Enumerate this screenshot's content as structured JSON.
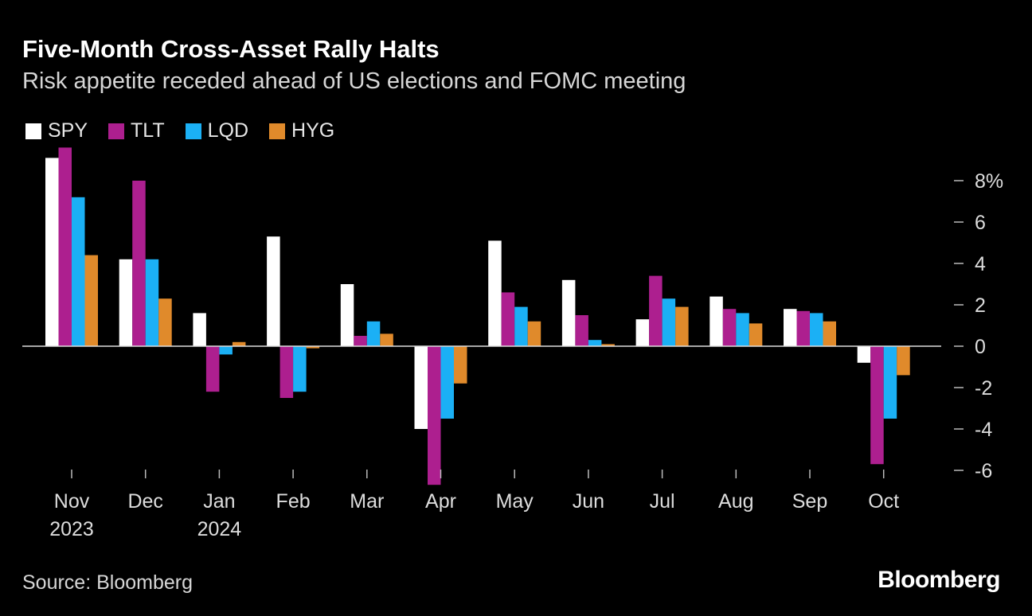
{
  "title": "Five-Month Cross-Asset Rally Halts",
  "subtitle": "Risk appetite receded ahead of US elections and FOMC meeting",
  "source": "Source: Bloomberg",
  "logo": "Bloomberg",
  "chart_data": {
    "type": "bar",
    "title": "Five-Month Cross-Asset Rally Halts",
    "subtitle": "Risk appetite receded ahead of US elections and FOMC meeting",
    "categories": [
      "Nov",
      "Dec",
      "Jan",
      "Feb",
      "Mar",
      "Apr",
      "May",
      "Jun",
      "Jul",
      "Aug",
      "Sep",
      "Oct"
    ],
    "category_sublabels": [
      "2023",
      "",
      "2024",
      "",
      "",
      "",
      "",
      "",
      "",
      "",
      "",
      ""
    ],
    "series": [
      {
        "name": "SPY",
        "color": "#ffffff",
        "values": [
          9.1,
          4.2,
          1.6,
          5.3,
          3.0,
          -4.0,
          5.1,
          3.2,
          1.3,
          2.4,
          1.8,
          -0.8
        ]
      },
      {
        "name": "TLT",
        "color": "#ad1f8f",
        "values": [
          9.6,
          8.0,
          -2.2,
          -2.5,
          0.5,
          -6.7,
          2.6,
          1.5,
          3.4,
          1.8,
          1.7,
          -5.7
        ]
      },
      {
        "name": "LQD",
        "color": "#1bb0f5",
        "values": [
          7.2,
          4.2,
          -0.4,
          -2.2,
          1.2,
          -3.5,
          1.9,
          0.3,
          2.3,
          1.6,
          1.6,
          -3.5
        ]
      },
      {
        "name": "HYG",
        "color": "#e08a2b",
        "values": [
          4.4,
          2.3,
          0.2,
          -0.1,
          0.6,
          -1.8,
          1.2,
          0.1,
          1.9,
          1.1,
          1.2,
          -1.4
        ]
      }
    ],
    "yticks": [
      "8%",
      "6",
      "4",
      "2",
      "0",
      "-2",
      "-4",
      "-6"
    ],
    "ytick_values": [
      8,
      6,
      4,
      2,
      0,
      -2,
      -4,
      -6
    ],
    "ylim": [
      -6.8,
      9.8
    ],
    "y_axis_position": "right",
    "legend": "top-left",
    "grid": false,
    "xlabel": "",
    "ylabel": ""
  }
}
